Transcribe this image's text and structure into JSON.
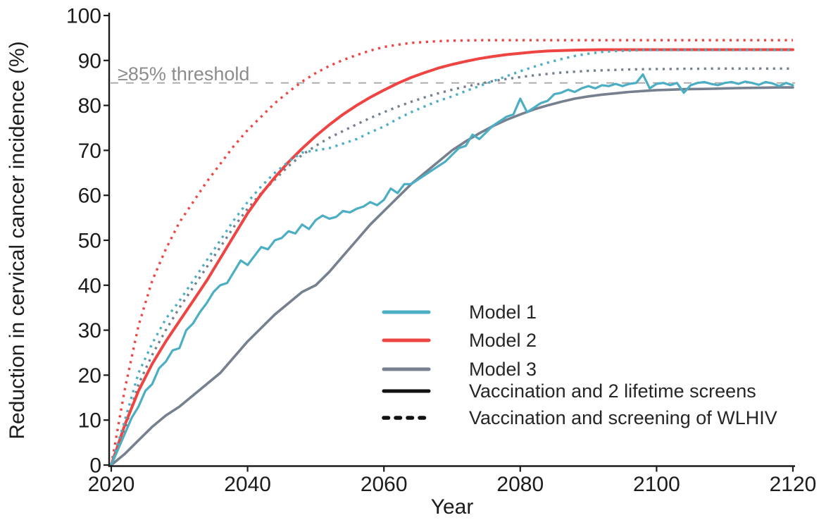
{
  "chart_data": {
    "type": "line",
    "title": "",
    "xlabel": "Year",
    "ylabel": "Reduction in cervical cancer incidence (%)",
    "xlim": [
      2020,
      2120
    ],
    "ylim": [
      0,
      100
    ],
    "x_ticks": [
      2020,
      2040,
      2060,
      2080,
      2100,
      2120
    ],
    "y_ticks": [
      0,
      10,
      20,
      30,
      40,
      50,
      60,
      70,
      80,
      90,
      100
    ],
    "grid": false,
    "legend_position": "inside-bottom-right",
    "threshold": {
      "value": 85,
      "label": "≥85% threshold",
      "line_style": "dashed",
      "color": "#8c8c8c"
    },
    "colors": {
      "model1": "#4BAEC3",
      "model2": "#EE4442",
      "model3": "#76808F",
      "axis": "#1b1b1b"
    },
    "series": [
      {
        "name": "Model 3 — Vaccination and screening of WLHIV",
        "model": "Model 3",
        "strategy": "Vaccination and screening of WLHIV",
        "style": "dotted",
        "color": "#76808F",
        "width": 3.4,
        "x_start": 2020,
        "x_step": 2,
        "x_end": 2120,
        "y": [
          0,
          8,
          18,
          24.5,
          30,
          35,
          39.5,
          44,
          48.5,
          53,
          57,
          60.5,
          63.5,
          66.5,
          69,
          71,
          72.8,
          74.3,
          75.8,
          77.2,
          78.5,
          79.7,
          80.8,
          81.8,
          82.7,
          83.5,
          84.2,
          84.8,
          85.4,
          85.9,
          86.3,
          86.7,
          87,
          87.3,
          87.5,
          87.7,
          87.8,
          87.9,
          88,
          88.05,
          88.1,
          88.1,
          88.15,
          88.15,
          88.2,
          88.2,
          88.2,
          88.2,
          88.2,
          88.2,
          88.2
        ]
      },
      {
        "name": "Model 2 — Vaccination and screening of WLHIV",
        "model": "Model 2",
        "strategy": "Vaccination and screening of WLHIV",
        "style": "dotted",
        "color": "#EE4442",
        "width": 3.4,
        "x_start": 2020,
        "x_step": 2,
        "x_end": 2120,
        "y": [
          0,
          17,
          31,
          41,
          48,
          54,
          58.5,
          63,
          67,
          71,
          74.5,
          77.5,
          80.5,
          83,
          85.3,
          87.2,
          88.8,
          90.1,
          91.2,
          92.2,
          93,
          93.5,
          93.9,
          94.1,
          94.3,
          94.4,
          94.45,
          94.5,
          94.5,
          94.5,
          94.5,
          94.5,
          94.5,
          94.5,
          94.5,
          94.5,
          94.5,
          94.5,
          94.5,
          94.5,
          94.5,
          94.5,
          94.5,
          94.5,
          94.5,
          94.5,
          94.5,
          94.5,
          94.5,
          94.5,
          94.5
        ]
      },
      {
        "name": "Model 3 — Vaccination and 2 lifetime screens",
        "model": "Model 3",
        "strategy": "Vaccination and 2 lifetime screens",
        "style": "solid",
        "color": "#76808F",
        "width": 3.6,
        "x_start": 2020,
        "x_step": 2,
        "x_end": 2120,
        "y": [
          0,
          2.5,
          5.5,
          8.5,
          11,
          13,
          15.5,
          18,
          20.5,
          24,
          27.5,
          30.5,
          33.5,
          36,
          38.5,
          40,
          43,
          46.5,
          50,
          53.5,
          56.5,
          59.5,
          62.5,
          65,
          67.5,
          70,
          72,
          73.8,
          75.4,
          76.8,
          78,
          79.1,
          80,
          80.8,
          81.5,
          82,
          82.4,
          82.7,
          83,
          83.2,
          83.4,
          83.5,
          83.6,
          83.65,
          83.7,
          83.8,
          83.85,
          83.9,
          83.95,
          84,
          84
        ]
      },
      {
        "name": "Model 2 — Vaccination and 2 lifetime screens",
        "model": "Model 2",
        "strategy": "Vaccination and 2 lifetime screens",
        "style": "solid",
        "color": "#EE4442",
        "width": 4,
        "x_start": 2020,
        "x_step": 2,
        "x_end": 2120,
        "y": [
          0,
          9,
          16.5,
          22.5,
          27.5,
          32,
          36.5,
          41,
          46,
          51,
          56,
          60.3,
          64,
          67.4,
          70.4,
          73.2,
          75.7,
          78,
          80,
          81.8,
          83.4,
          84.9,
          86.2,
          87.3,
          88.3,
          89.1,
          89.8,
          90.4,
          90.9,
          91.3,
          91.6,
          91.9,
          92.1,
          92.2,
          92.3,
          92.35,
          92.4,
          92.4,
          92.4,
          92.4,
          92.4,
          92.4,
          92.4,
          92.4,
          92.4,
          92.4,
          92.4,
          92.4,
          92.4,
          92.4,
          92.4
        ]
      },
      {
        "name": "Model 1 — Vaccination and screening of WLHIV",
        "model": "Model 1",
        "strategy": "Vaccination and screening of WLHIV",
        "style": "dotted",
        "color": "#4BAEC3",
        "width": 3.4,
        "x_start": 2020,
        "x_step": 2,
        "x_end": 2120,
        "y": [
          0,
          10,
          20.5,
          27,
          32.5,
          36.5,
          41,
          45.5,
          50,
          54.5,
          58.5,
          62,
          65,
          67.5,
          69.5,
          70,
          70.5,
          71.5,
          72.5,
          74,
          75.3,
          77,
          78.5,
          79.8,
          81,
          82,
          83.2,
          84.3,
          85.4,
          86.5,
          87.6,
          88.6,
          89.5,
          90.3,
          91,
          91.5,
          91.9,
          92.1,
          92.2,
          92.3,
          92.3,
          92.3,
          92.3,
          92.3,
          92.3,
          92.3,
          92.3,
          92.3,
          92.3,
          92.3,
          92.3
        ]
      },
      {
        "name": "Model 1 — Vaccination and 2 lifetime screens",
        "model": "Model 1",
        "strategy": "Vaccination and 2 lifetime screens",
        "style": "solid",
        "color": "#4BAEC3",
        "width": 3.2,
        "x_start": 2020,
        "x_step": 1,
        "x_end": 2120,
        "y": [
          0,
          3.5,
          7,
          10.5,
          13,
          16.5,
          18,
          21.5,
          23,
          25.5,
          26,
          30,
          31.5,
          34,
          36,
          38.5,
          40,
          40.5,
          43,
          45.5,
          44.5,
          46.5,
          48.5,
          48,
          50,
          50.5,
          52,
          51.5,
          53.5,
          52.5,
          54.5,
          55.5,
          54.8,
          55.2,
          56.5,
          56.2,
          57,
          57.5,
          58.5,
          57.8,
          59,
          61.5,
          60.5,
          62.5,
          62.5,
          63.5,
          64.5,
          65.5,
          66.5,
          67.5,
          69,
          70.5,
          71,
          73.5,
          72.5,
          74,
          75.5,
          76.5,
          77.5,
          78,
          81.5,
          78.5,
          79.5,
          80.5,
          81,
          82.5,
          82.8,
          83.5,
          83,
          83.8,
          84.3,
          83.8,
          84.5,
          84.3,
          84.8,
          84.3,
          84.8,
          85,
          86.9,
          83.8,
          84.8,
          85,
          84.5,
          85,
          82.8,
          84.5,
          85,
          85.2,
          84.8,
          84.5,
          85,
          85.2,
          84.8,
          85.3,
          85,
          84.6,
          85.2,
          84.9,
          84.3,
          85,
          84.5
        ]
      }
    ]
  },
  "legend": {
    "models": [
      {
        "label": "Model 1",
        "color": "#4BAEC3"
      },
      {
        "label": "Model 2",
        "color": "#EE4442"
      },
      {
        "label": "Model 3",
        "color": "#76808F"
      }
    ],
    "linetypes": [
      {
        "label": "Vaccination and 2 lifetime screens",
        "style": "solid",
        "color": "#111111"
      },
      {
        "label": "Vaccination and screening of WLHIV",
        "style": "dotted",
        "color": "#111111"
      }
    ]
  }
}
